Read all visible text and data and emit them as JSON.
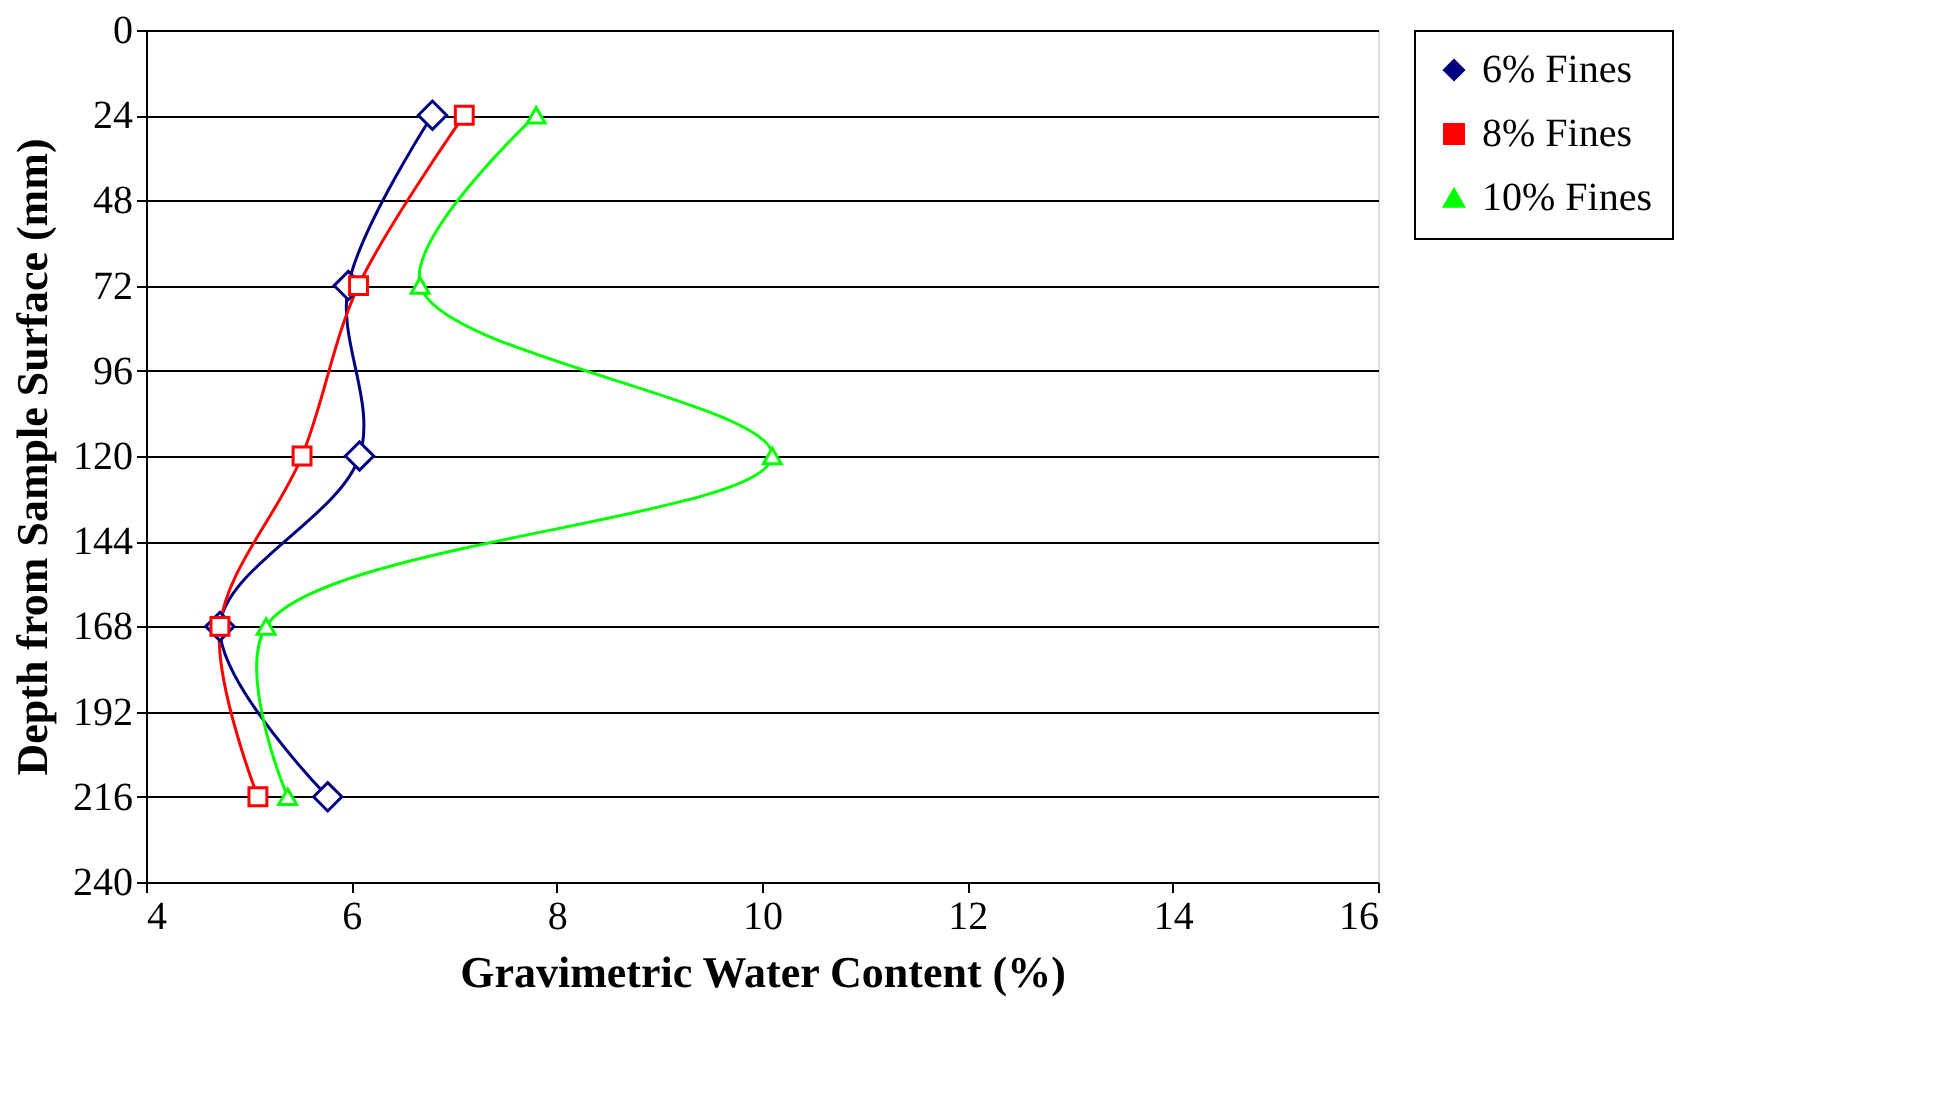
{
  "chart_data": {
    "type": "line",
    "xlabel": "Gravimetric Water Content (%)",
    "ylabel": "Depth from Sample Surface (mm)",
    "xlim": [
      4,
      16
    ],
    "xticks": [
      4,
      6,
      8,
      10,
      12,
      14,
      16
    ],
    "ylim": [
      240,
      0
    ],
    "yticks": [
      0,
      24,
      48,
      72,
      96,
      120,
      144,
      168,
      192,
      216,
      240
    ],
    "grid": "y",
    "legend": "right",
    "series": [
      {
        "name": "6% Fines",
        "color": "#000080",
        "marker": "diamond",
        "x": [
          6.79,
          5.97,
          6.08,
          4.72,
          5.77
        ],
        "values": [
          24,
          72,
          120,
          168,
          216
        ]
      },
      {
        "name": "8% Fines",
        "color": "#ff0000",
        "marker": "square",
        "x": [
          7.1,
          6.07,
          5.52,
          4.72,
          5.09
        ],
        "values": [
          24,
          72,
          120,
          168,
          216
        ]
      },
      {
        "name": "10% Fines",
        "color": "#00ff00",
        "marker": "triangle",
        "x": [
          7.8,
          6.67,
          10.1,
          5.17,
          5.38
        ],
        "values": [
          24,
          72,
          120,
          168,
          216
        ]
      }
    ]
  }
}
